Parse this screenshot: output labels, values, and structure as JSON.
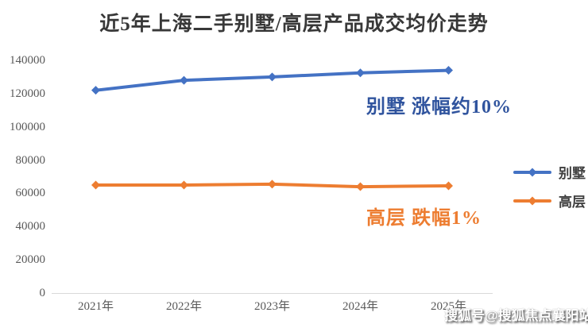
{
  "title": "近5年上海二手别墅/高层产品成交均价走势",
  "watermark": "搜狐号@搜狐焦点襄阳站",
  "colors": {
    "background": "#FFFFFF",
    "title_text": "#383838",
    "axis_text": "#595959",
    "axis_line": "#D9D9D9",
    "legend_text": "#404040",
    "villa_series": "#4472C4",
    "highrise_series": "#ED7D31",
    "villa_annotation": "#30549E",
    "highrise_annotation": "#ED7D31"
  },
  "chart_data": {
    "type": "line",
    "title": "近5年上海二手别墅/高层产品成交均价走势",
    "categories": [
      "2021年",
      "2022年",
      "2023年",
      "2024年",
      "2025年"
    ],
    "series": [
      {
        "key": "villa",
        "name": "别墅",
        "color": "#4472C4",
        "values": [
          122000,
          128000,
          130000,
          132500,
          134000
        ],
        "annotation": "别墅 涨幅约10%"
      },
      {
        "key": "highrise",
        "name": "高层",
        "color": "#ED7D31",
        "values": [
          65000,
          65000,
          65500,
          64000,
          64500
        ],
        "annotation": "高层 跌幅1%"
      }
    ],
    "xlabel": "",
    "ylabel": "",
    "ylim": [
      0,
      140000
    ],
    "yticks": [
      0,
      20000,
      40000,
      60000,
      80000,
      100000,
      120000,
      140000
    ],
    "grid": false,
    "marker": "diamond",
    "legend_position": "center-right"
  }
}
